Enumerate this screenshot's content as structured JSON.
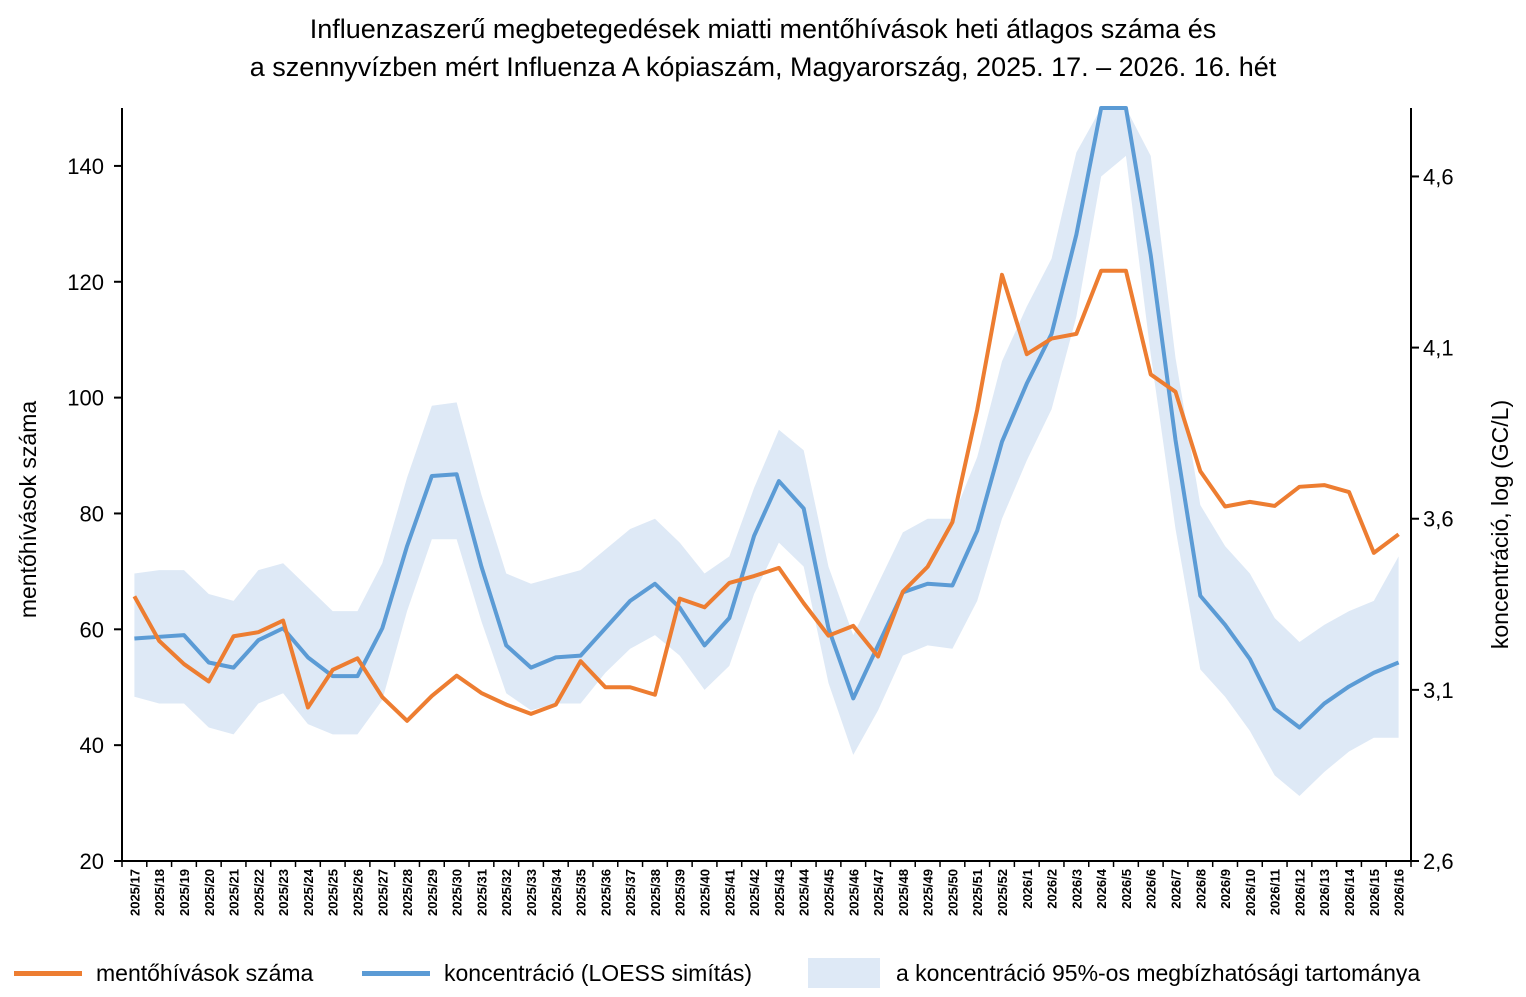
{
  "title": {
    "line1": "Influenzaszerű megbetegedések miatti mentőhívások heti átlagos száma és",
    "line2": "a szennyvízben mért Influenza A kópiaszám, Magyarország, 2025. 17. – 2026. 16. hét"
  },
  "colors": {
    "calls": "#ED7D31",
    "concentration": "#5B9BD5",
    "ci_band": "#DEE9F6"
  },
  "legend": {
    "calls": "mentőhívások száma",
    "concentration": "koncentráció (LOESS simítás)",
    "ci": "a koncentráció 95%-os megbízhatósági tartománya"
  },
  "chart_data": {
    "type": "line",
    "ylabel": "mentőhívások száma",
    "ylabel_right": "koncentráció, log (GC/L)",
    "ylim": [
      20,
      150
    ],
    "yticks": [
      20,
      40,
      60,
      80,
      100,
      120,
      140
    ],
    "ylim_right": [
      2.6,
      4.8
    ],
    "yticks_right": [
      "2,6",
      "3,1",
      "3,6",
      "4,1",
      "4,6"
    ],
    "yticks_right_values": [
      2.6,
      3.1,
      3.6,
      4.1,
      4.6
    ],
    "categories": [
      "2025/17",
      "2025/18",
      "2025/19",
      "2025/20",
      "2025/21",
      "2025/22",
      "2025/23",
      "2025/24",
      "2025/25",
      "2025/26",
      "2025/27",
      "2025/28",
      "2025/29",
      "2025/30",
      "2025/31",
      "2025/32",
      "2025/33",
      "2025/34",
      "2025/35",
      "2025/36",
      "2025/37",
      "2025/38",
      "2025/39",
      "2025/40",
      "2025/41",
      "2025/42",
      "2025/43",
      "2025/44",
      "2025/45",
      "2025/46",
      "2025/47",
      "2025/48",
      "2025/49",
      "2025/50",
      "2025/51",
      "2025/52",
      "2026/1",
      "2026/2",
      "2026/3",
      "2026/4",
      "2026/5",
      "2026/6",
      "2026/7",
      "2026/8",
      "2026/9",
      "2026/10",
      "2026/11",
      "2026/12",
      "2026/13",
      "2026/14",
      "2026/15",
      "2026/16"
    ],
    "series": [
      {
        "name": "mentőhívások száma",
        "axis": "left",
        "values": [
          65.7,
          58,
          54,
          51,
          58.8,
          59.5,
          61.5,
          46.5,
          53,
          55,
          48.3,
          44.2,
          48.5,
          52,
          49,
          47,
          45.4,
          47,
          54.5,
          50,
          50,
          48.7,
          65.3,
          63.8,
          68,
          69.2,
          70.6,
          64.5,
          58.9,
          60.6,
          55.3,
          66.5,
          70.8,
          78.5,
          97.9,
          121.2,
          107.5,
          110.2,
          111,
          121.9,
          121.9,
          104,
          101,
          87.3,
          81.2,
          82,
          81.3,
          84.6,
          84.9,
          83.7,
          73.2,
          76.4
        ]
      },
      {
        "name": "koncentráció (LOESS simítás)",
        "axis": "right",
        "values": [
          3.25,
          3.255,
          3.26,
          3.18,
          3.165,
          3.245,
          3.28,
          3.195,
          3.14,
          3.14,
          3.28,
          3.52,
          3.725,
          3.73,
          3.46,
          3.23,
          3.165,
          3.195,
          3.2,
          3.28,
          3.36,
          3.41,
          3.34,
          3.23,
          3.31,
          3.55,
          3.71,
          3.63,
          3.28,
          3.075,
          3.23,
          3.385,
          3.41,
          3.405,
          3.565,
          3.825,
          3.995,
          4.14,
          4.43,
          4.88,
          4.93,
          4.37,
          3.83,
          3.375,
          3.29,
          3.19,
          3.045,
          2.99,
          3.06,
          3.11,
          3.15,
          3.18
        ]
      },
      {
        "name": "a koncentráció 95%-os megbízhatósági tartománya",
        "axis": "right",
        "type": "band",
        "lower": [
          3.08,
          3.06,
          3.06,
          2.99,
          2.97,
          3.06,
          3.09,
          3.0,
          2.97,
          2.97,
          3.07,
          3.33,
          3.54,
          3.54,
          3.3,
          3.09,
          3.04,
          3.06,
          3.06,
          3.15,
          3.22,
          3.26,
          3.2,
          3.1,
          3.17,
          3.38,
          3.53,
          3.46,
          3.12,
          2.91,
          3.04,
          3.2,
          3.23,
          3.22,
          3.36,
          3.6,
          3.77,
          3.92,
          4.19,
          4.6,
          4.66,
          4.08,
          3.57,
          3.16,
          3.08,
          2.98,
          2.85,
          2.79,
          2.86,
          2.92,
          2.96,
          2.96
        ],
        "upper": [
          3.44,
          3.45,
          3.45,
          3.38,
          3.36,
          3.45,
          3.47,
          3.4,
          3.33,
          3.33,
          3.47,
          3.72,
          3.93,
          3.94,
          3.67,
          3.44,
          3.41,
          3.43,
          3.45,
          3.51,
          3.57,
          3.6,
          3.53,
          3.44,
          3.49,
          3.69,
          3.86,
          3.8,
          3.46,
          3.26,
          3.41,
          3.56,
          3.6,
          3.6,
          3.78,
          4.06,
          4.22,
          4.36,
          4.67,
          5.08,
          5.13,
          4.66,
          4.07,
          3.64,
          3.52,
          3.44,
          3.31,
          3.24,
          3.29,
          3.33,
          3.36,
          3.49
        ]
      }
    ]
  }
}
